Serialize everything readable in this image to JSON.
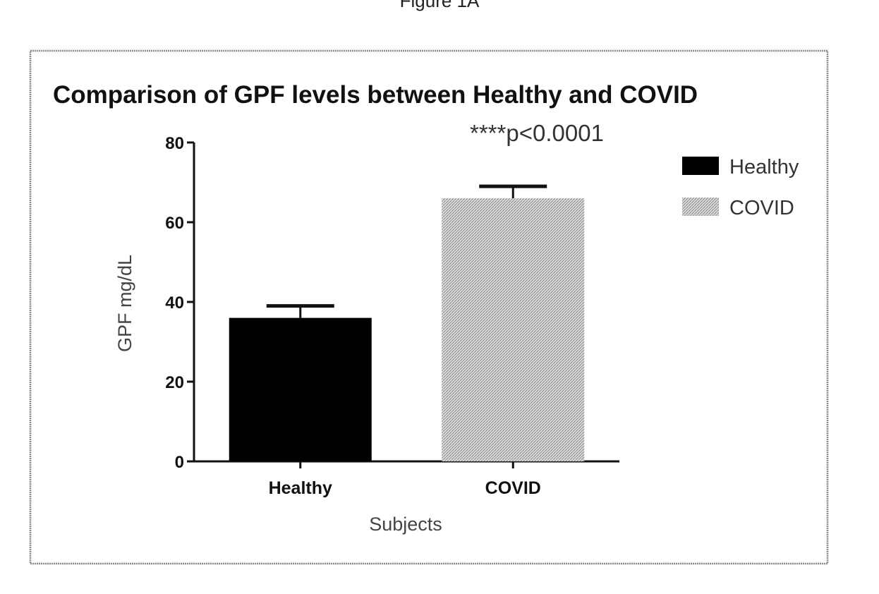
{
  "figure_caption": "Figure 1A",
  "chart_data": {
    "type": "bar",
    "title": "Comparison of GPF levels between Healthy and COVID",
    "xlabel": "Subjects",
    "ylabel": "GPF mg/dL",
    "categories": [
      "Healthy",
      "COVID"
    ],
    "values": [
      36,
      66
    ],
    "error_bars": [
      3,
      3
    ],
    "ylim": [
      0,
      80
    ],
    "yticks": [
      0,
      20,
      40,
      60,
      80
    ],
    "annotation": "****p<0.0001",
    "legend_placement": "top-right",
    "grid": false,
    "series": [
      {
        "name": "Healthy",
        "color": "#000000",
        "pattern": "solid"
      },
      {
        "name": "COVID",
        "color": "#c8c8c8",
        "pattern": "hatched"
      }
    ]
  }
}
